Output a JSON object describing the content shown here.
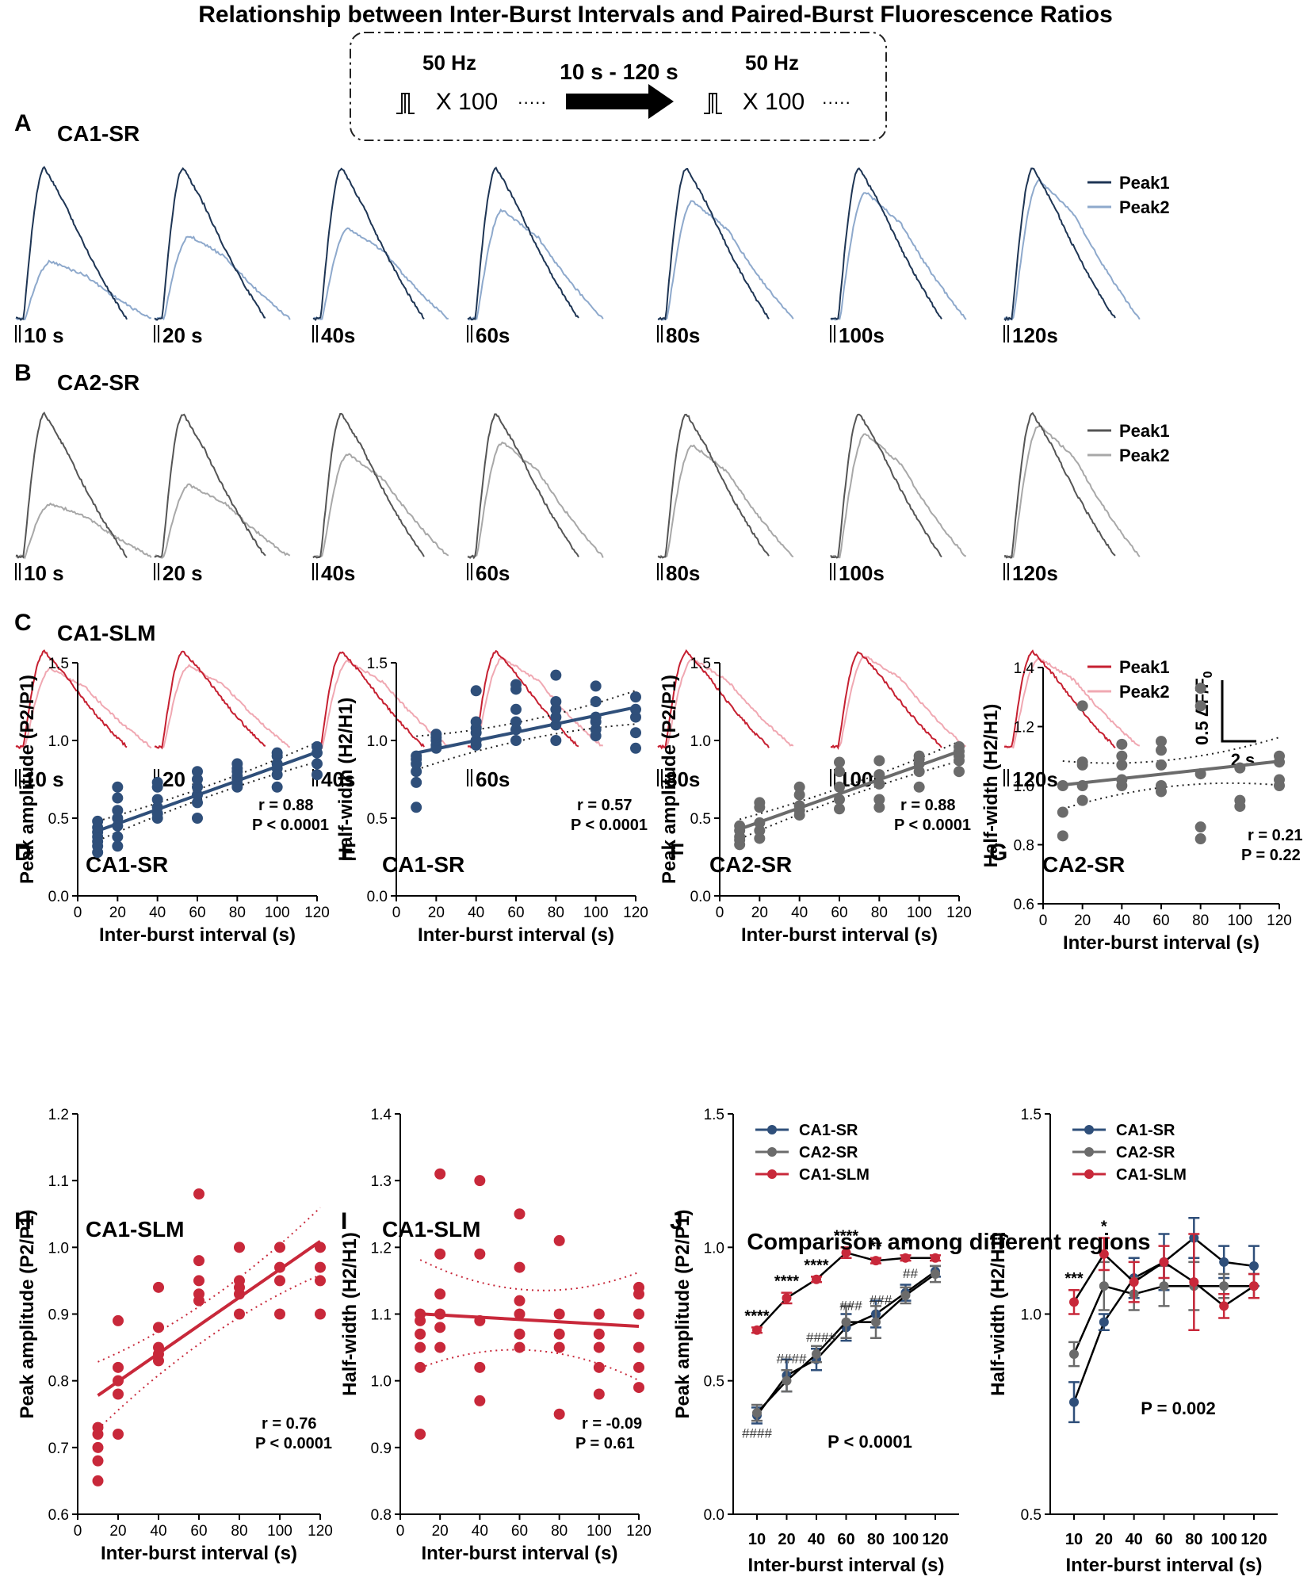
{
  "figure": {
    "title": "Relationship between Inter-Burst Intervals and Paired-Burst Fluorescence Ratios",
    "protocol": {
      "freq_label": "50 Hz",
      "repeat_label": "X 100",
      "dots": "·····",
      "interval_label": "10 s - 120 s"
    },
    "colors": {
      "ca1sr_dark": "#1e3554",
      "ca1sr_light": "#8ea9cc",
      "ca1sr_marker": "#2f4f7a",
      "ca2sr_dark": "#555555",
      "ca2sr_light": "#a8a8a8",
      "ca2sr_marker": "#6b6b6b",
      "ca1slm_dark": "#c62031",
      "ca1slm_light": "#f0a8b2",
      "ca1slm_marker": "#c8283a"
    },
    "trace_rows": [
      {
        "letter": "A",
        "region": "CA1-SR",
        "dark": "ca1sr_dark",
        "light": "ca1sr_light",
        "legend": [
          "Peak1",
          "Peak2"
        ],
        "intervals": [
          "10 s",
          "20 s",
          "40s",
          "60s",
          "80s",
          "100s",
          "120s"
        ],
        "ratios": [
          0.38,
          0.55,
          0.6,
          0.72,
          0.78,
          0.84,
          0.92
        ]
      },
      {
        "letter": "B",
        "region": "CA2-SR",
        "dark": "ca2sr_dark",
        "light": "ca2sr_light",
        "legend": [
          "Peak1",
          "Peak2"
        ],
        "intervals": [
          "10 s",
          "20 s",
          "40s",
          "60s",
          "80s",
          "100s",
          "120s"
        ],
        "ratios": [
          0.37,
          0.5,
          0.72,
          0.8,
          0.78,
          0.86,
          0.92
        ]
      },
      {
        "letter": "C",
        "region": "CA1-SLM",
        "dark": "ca1slm_dark",
        "light": "ca1slm_light",
        "legend": [
          "Peak1",
          "Peak2"
        ],
        "intervals": [
          "10 s",
          "20 s",
          "40s",
          "60s",
          "80s",
          "100s",
          "120s"
        ],
        "ratios": [
          0.82,
          0.85,
          0.9,
          0.93,
          0.92,
          0.95,
          0.93
        ]
      }
    ],
    "scale_bar": {
      "y_label": "0.5 ΔF/F",
      "y_sub": "0",
      "x_label": "2 s"
    },
    "j_title": "Comparison among different regions"
  },
  "chart_data": [
    {
      "id": "D",
      "type": "scatter",
      "title": "CA1-SR",
      "color": "ca1sr_marker",
      "xlabel": "Inter-burst interval (s)",
      "ylabel": "Peak amplitude (P2/P1)",
      "xlim": [
        0,
        120
      ],
      "ylim": [
        0,
        1.5
      ],
      "xticks": [
        0,
        20,
        40,
        60,
        80,
        100,
        120
      ],
      "yticks": [
        0.0,
        0.5,
        1.0,
        1.5
      ],
      "ytick_decimals": 1,
      "x": [
        10,
        10,
        10,
        10,
        10,
        10,
        10,
        20,
        20,
        20,
        20,
        20,
        20,
        20,
        40,
        40,
        40,
        40,
        40,
        40,
        60,
        60,
        60,
        60,
        60,
        60,
        80,
        80,
        80,
        80,
        80,
        80,
        80,
        100,
        100,
        100,
        100,
        100,
        100,
        120,
        120,
        120,
        120
      ],
      "y": [
        0.28,
        0.32,
        0.35,
        0.38,
        0.41,
        0.44,
        0.48,
        0.32,
        0.38,
        0.45,
        0.5,
        0.55,
        0.63,
        0.7,
        0.5,
        0.53,
        0.57,
        0.62,
        0.7,
        0.73,
        0.5,
        0.6,
        0.65,
        0.7,
        0.75,
        0.8,
        0.7,
        0.72,
        0.75,
        0.77,
        0.8,
        0.82,
        0.85,
        0.7,
        0.78,
        0.82,
        0.85,
        0.9,
        0.92,
        0.78,
        0.85,
        0.92,
        0.96
      ],
      "fit": {
        "slope": 0.00461,
        "intercept": 0.372,
        "ci": 0.035
      },
      "stats": [
        "r = 0.88",
        "P < 0.0001"
      ]
    },
    {
      "id": "E",
      "type": "scatter",
      "title": "CA1-SR",
      "color": "ca1sr_marker",
      "xlabel": "Inter-burst interval (s)",
      "ylabel": "Half-width (H2/H1)",
      "xlim": [
        0,
        120
      ],
      "ylim": [
        0,
        1.5
      ],
      "xticks": [
        0,
        20,
        40,
        60,
        80,
        100,
        120
      ],
      "yticks": [
        0.0,
        0.5,
        1.0,
        1.5
      ],
      "ytick_decimals": 1,
      "x": [
        10,
        10,
        10,
        10,
        10,
        10,
        20,
        20,
        20,
        20,
        20,
        40,
        40,
        40,
        40,
        40,
        40,
        60,
        60,
        60,
        60,
        60,
        60,
        80,
        80,
        80,
        80,
        80,
        80,
        100,
        100,
        100,
        100,
        100,
        100,
        120,
        120,
        120,
        120,
        120
      ],
      "y": [
        0.57,
        0.73,
        0.8,
        0.85,
        0.88,
        0.9,
        0.95,
        0.97,
        1.0,
        1.02,
        1.04,
        0.97,
        1.0,
        1.05,
        1.08,
        1.12,
        1.32,
        1.0,
        1.07,
        1.12,
        1.2,
        1.33,
        1.36,
        1.0,
        1.1,
        1.15,
        1.2,
        1.25,
        1.42,
        1.03,
        1.07,
        1.12,
        1.15,
        1.25,
        1.35,
        0.95,
        1.05,
        1.15,
        1.2,
        1.28
      ],
      "fit": {
        "slope": 0.00267,
        "intercept": 0.893,
        "ci": 0.06
      },
      "stats": [
        "r = 0.57",
        "P < 0.0001"
      ]
    },
    {
      "id": "F",
      "type": "scatter",
      "title": "CA2-SR",
      "color": "ca2sr_marker",
      "xlabel": "Inter-burst interval (s)",
      "ylabel": "Peak amplitude (P2/P1)",
      "xlim": [
        0,
        120
      ],
      "ylim": [
        0,
        1.5
      ],
      "xticks": [
        0,
        20,
        40,
        60,
        80,
        100,
        120
      ],
      "yticks": [
        0.0,
        0.5,
        1.0,
        1.5
      ],
      "ytick_decimals": 1,
      "x": [
        10,
        10,
        10,
        10,
        10,
        20,
        20,
        20,
        20,
        20,
        40,
        40,
        40,
        40,
        40,
        60,
        60,
        60,
        60,
        60,
        80,
        80,
        80,
        80,
        80,
        100,
        100,
        100,
        100,
        100,
        120,
        120,
        120,
        120,
        120
      ],
      "y": [
        0.33,
        0.36,
        0.38,
        0.42,
        0.45,
        0.37,
        0.42,
        0.47,
        0.57,
        0.6,
        0.52,
        0.55,
        0.58,
        0.65,
        0.7,
        0.56,
        0.62,
        0.7,
        0.8,
        0.86,
        0.57,
        0.62,
        0.72,
        0.78,
        0.87,
        0.7,
        0.8,
        0.85,
        0.88,
        0.9,
        0.8,
        0.87,
        0.9,
        0.93,
        0.96
      ],
      "fit": {
        "slope": 0.00455,
        "intercept": 0.384,
        "ci": 0.035
      },
      "stats": [
        "r = 0.88",
        "P < 0.0001"
      ]
    },
    {
      "id": "G",
      "type": "scatter",
      "title": "CA2-SR",
      "color": "ca2sr_marker",
      "xlabel": "Inter-burst interval (s)",
      "ylabel": "Half-width (H2/H1)",
      "xlim": [
        0,
        120
      ],
      "ylim": [
        0.6,
        1.4
      ],
      "xticks": [
        0,
        20,
        40,
        60,
        80,
        100,
        120
      ],
      "yticks": [
        0.6,
        0.8,
        1.0,
        1.2,
        1.4
      ],
      "ytick_decimals": 1,
      "x": [
        10,
        10,
        10,
        20,
        20,
        20,
        20,
        20,
        40,
        40,
        40,
        40,
        40,
        60,
        60,
        60,
        60,
        60,
        80,
        80,
        80,
        80,
        80,
        100,
        100,
        100,
        120,
        120,
        120,
        120
      ],
      "y": [
        0.83,
        0.91,
        1.0,
        0.95,
        1.0,
        1.07,
        1.08,
        1.27,
        1.0,
        1.02,
        1.07,
        1.1,
        1.14,
        0.98,
        1.0,
        1.07,
        1.12,
        1.15,
        0.82,
        0.86,
        1.04,
        1.27,
        1.33,
        0.93,
        0.95,
        1.06,
        1.0,
        1.02,
        1.08,
        1.1
      ],
      "fit": {
        "slope": 0.00073,
        "intercept": 0.995,
        "ci": 0.045
      },
      "stats": [
        "r = 0.21",
        "P = 0.22"
      ]
    },
    {
      "id": "H",
      "type": "scatter",
      "title": "CA1-SLM",
      "color": "ca1slm_marker",
      "xlabel": "Inter-burst interval (s)",
      "ylabel": "Peak amplitude (P2/P1)",
      "xlim": [
        0,
        120
      ],
      "ylim": [
        0.6,
        1.2
      ],
      "xticks": [
        0,
        20,
        40,
        60,
        80,
        100,
        120
      ],
      "yticks": [
        0.6,
        0.7,
        0.8,
        0.9,
        1.0,
        1.1,
        1.2
      ],
      "ytick_decimals": 1,
      "x": [
        10,
        10,
        10,
        10,
        10,
        20,
        20,
        20,
        20,
        20,
        40,
        40,
        40,
        40,
        40,
        60,
        60,
        60,
        60,
        60,
        80,
        80,
        80,
        80,
        80,
        100,
        100,
        100,
        100,
        120,
        120,
        120,
        120
      ],
      "y": [
        0.65,
        0.68,
        0.7,
        0.72,
        0.73,
        0.72,
        0.78,
        0.8,
        0.82,
        0.89,
        0.83,
        0.84,
        0.85,
        0.88,
        0.94,
        0.92,
        0.93,
        0.95,
        0.98,
        1.08,
        0.9,
        0.93,
        0.94,
        0.95,
        1.0,
        0.9,
        0.95,
        0.97,
        1.0,
        0.9,
        0.95,
        0.97,
        1.0
      ],
      "fit": {
        "slope": 0.0021,
        "intercept": 0.757,
        "ci": 0.028
      },
      "stats": [
        "r = 0.76",
        "P < 0.0001"
      ]
    },
    {
      "id": "I",
      "type": "scatter",
      "title": "CA1-SLM",
      "color": "ca1slm_marker",
      "xlabel": "Inter-burst interval (s)",
      "ylabel": "Half-width (H2/H1)",
      "xlim": [
        0,
        120
      ],
      "ylim": [
        0.8,
        1.4
      ],
      "xticks": [
        0,
        20,
        40,
        60,
        80,
        100,
        120
      ],
      "yticks": [
        0.8,
        0.9,
        1.0,
        1.1,
        1.2,
        1.3,
        1.4
      ],
      "ytick_decimals": 1,
      "x": [
        10,
        10,
        10,
        10,
        10,
        10,
        20,
        20,
        20,
        20,
        20,
        20,
        40,
        40,
        40,
        40,
        40,
        60,
        60,
        60,
        60,
        60,
        60,
        80,
        80,
        80,
        80,
        80,
        100,
        100,
        100,
        100,
        100,
        120,
        120,
        120,
        120,
        120,
        120
      ],
      "y": [
        0.92,
        1.02,
        1.05,
        1.07,
        1.09,
        1.1,
        1.05,
        1.08,
        1.1,
        1.13,
        1.19,
        1.31,
        0.97,
        1.02,
        1.09,
        1.19,
        1.3,
        1.05,
        1.07,
        1.1,
        1.12,
        1.17,
        1.25,
        0.95,
        1.05,
        1.07,
        1.1,
        1.21,
        0.98,
        1.02,
        1.05,
        1.07,
        1.1,
        0.99,
        1.02,
        1.05,
        1.1,
        1.13,
        1.14
      ],
      "fit": {
        "slope": -0.00017,
        "intercept": 1.102,
        "ci": 0.045
      },
      "stats": [
        "r = -0.09",
        "P = 0.61"
      ]
    },
    {
      "id": "J1",
      "type": "line",
      "title": "",
      "xlabel": "Inter-burst interval (s)",
      "ylabel": "Peak amplitude (P2/P1)",
      "categories": [
        "10",
        "20",
        "40",
        "60",
        "80",
        "100",
        "120"
      ],
      "ylim": [
        0,
        1.5
      ],
      "yticks": [
        0.0,
        0.5,
        1.0,
        1.5
      ],
      "ytick_decimals": 1,
      "series": [
        {
          "name": "CA1-SR",
          "color": "ca1sr_marker",
          "values": [
            0.37,
            0.52,
            0.58,
            0.7,
            0.75,
            0.83,
            0.91
          ],
          "err": [
            0.03,
            0.06,
            0.04,
            0.05,
            0.05,
            0.03,
            0.02
          ]
        },
        {
          "name": "CA2-SR",
          "color": "ca2sr_marker",
          "values": [
            0.38,
            0.5,
            0.6,
            0.72,
            0.72,
            0.82,
            0.9
          ],
          "err": [
            0.03,
            0.04,
            0.03,
            0.06,
            0.06,
            0.03,
            0.03
          ]
        },
        {
          "name": "CA1-SLM",
          "color": "ca1slm_marker",
          "values": [
            0.69,
            0.81,
            0.88,
            0.98,
            0.95,
            0.96,
            0.96
          ],
          "err": [
            0.01,
            0.02,
            0.01,
            0.02,
            0.01,
            0.01,
            0.01
          ]
        }
      ],
      "annotations_top": [
        "****",
        "****",
        "****",
        "****",
        "**",
        "*",
        ""
      ],
      "annotations_bottom": [
        "####",
        "####",
        "####",
        "###",
        "###",
        "##",
        ""
      ],
      "stat": "P < 0.0001"
    },
    {
      "id": "J2",
      "type": "line",
      "title": "",
      "xlabel": "Inter-burst interval (s)",
      "ylabel": "Half-width (H2/H1)",
      "categories": [
        "10",
        "20",
        "40",
        "60",
        "80",
        "100",
        "120"
      ],
      "ylim": [
        0.5,
        1.5
      ],
      "yticks": [
        0.5,
        1.0,
        1.5
      ],
      "ytick_decimals": 1,
      "series": [
        {
          "name": "CA1-SR",
          "color": "ca1sr_marker",
          "values": [
            0.78,
            0.98,
            1.09,
            1.13,
            1.19,
            1.13,
            1.12
          ],
          "err": [
            0.05,
            0.02,
            0.05,
            0.07,
            0.05,
            0.04,
            0.05
          ]
        },
        {
          "name": "CA2-SR",
          "color": "ca2sr_marker",
          "values": [
            0.9,
            1.07,
            1.05,
            1.07,
            1.07,
            1.07,
            1.07
          ],
          "err": [
            0.03,
            0.06,
            0.04,
            0.05,
            0.06,
            0.03,
            0.03
          ]
        },
        {
          "name": "CA1-SLM",
          "color": "ca1slm_marker",
          "values": [
            1.03,
            1.15,
            1.08,
            1.13,
            1.08,
            1.02,
            1.07
          ],
          "err": [
            0.03,
            0.04,
            0.05,
            0.04,
            0.12,
            0.03,
            0.03
          ]
        }
      ],
      "annotations_top": [
        "***",
        "*",
        "",
        "",
        "",
        "",
        ""
      ],
      "stat": "P = 0.002"
    }
  ]
}
